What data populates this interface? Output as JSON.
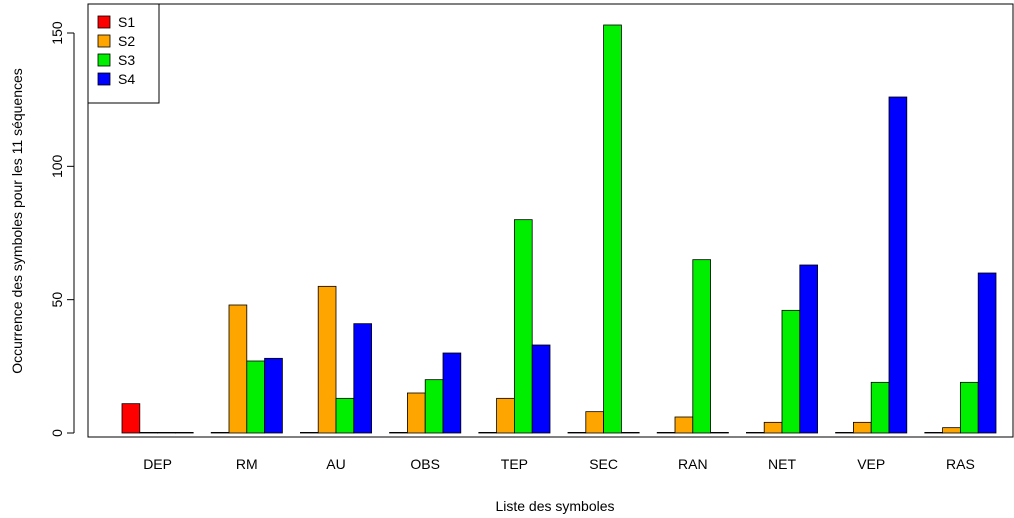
{
  "chart_data": {
    "type": "bar",
    "xlabel": "Liste des symboles",
    "ylabel": "Occurrence des symboles pour les 11 séquences",
    "ylim": [
      0,
      160
    ],
    "yticks": [
      0,
      50,
      100,
      150
    ],
    "categories": [
      "DEP",
      "RM",
      "AU",
      "OBS",
      "TEP",
      "SEC",
      "RAN",
      "NET",
      "VEP",
      "RAS"
    ],
    "series": [
      {
        "name": "S1",
        "color": "#ff0000",
        "values": [
          11,
          0,
          0,
          0,
          0,
          0,
          0,
          0,
          0,
          0
        ]
      },
      {
        "name": "S2",
        "color": "#ffa500",
        "values": [
          0,
          48,
          55,
          15,
          13,
          8,
          6,
          4,
          4,
          2
        ]
      },
      {
        "name": "S3",
        "color": "#00ee00",
        "values": [
          0,
          27,
          13,
          20,
          80,
          153,
          65,
          46,
          19,
          19
        ]
      },
      {
        "name": "S4",
        "color": "#0000ff",
        "values": [
          0,
          28,
          41,
          30,
          33,
          0,
          0,
          63,
          126,
          60
        ]
      }
    ],
    "legend": "top-left",
    "grid": false
  }
}
